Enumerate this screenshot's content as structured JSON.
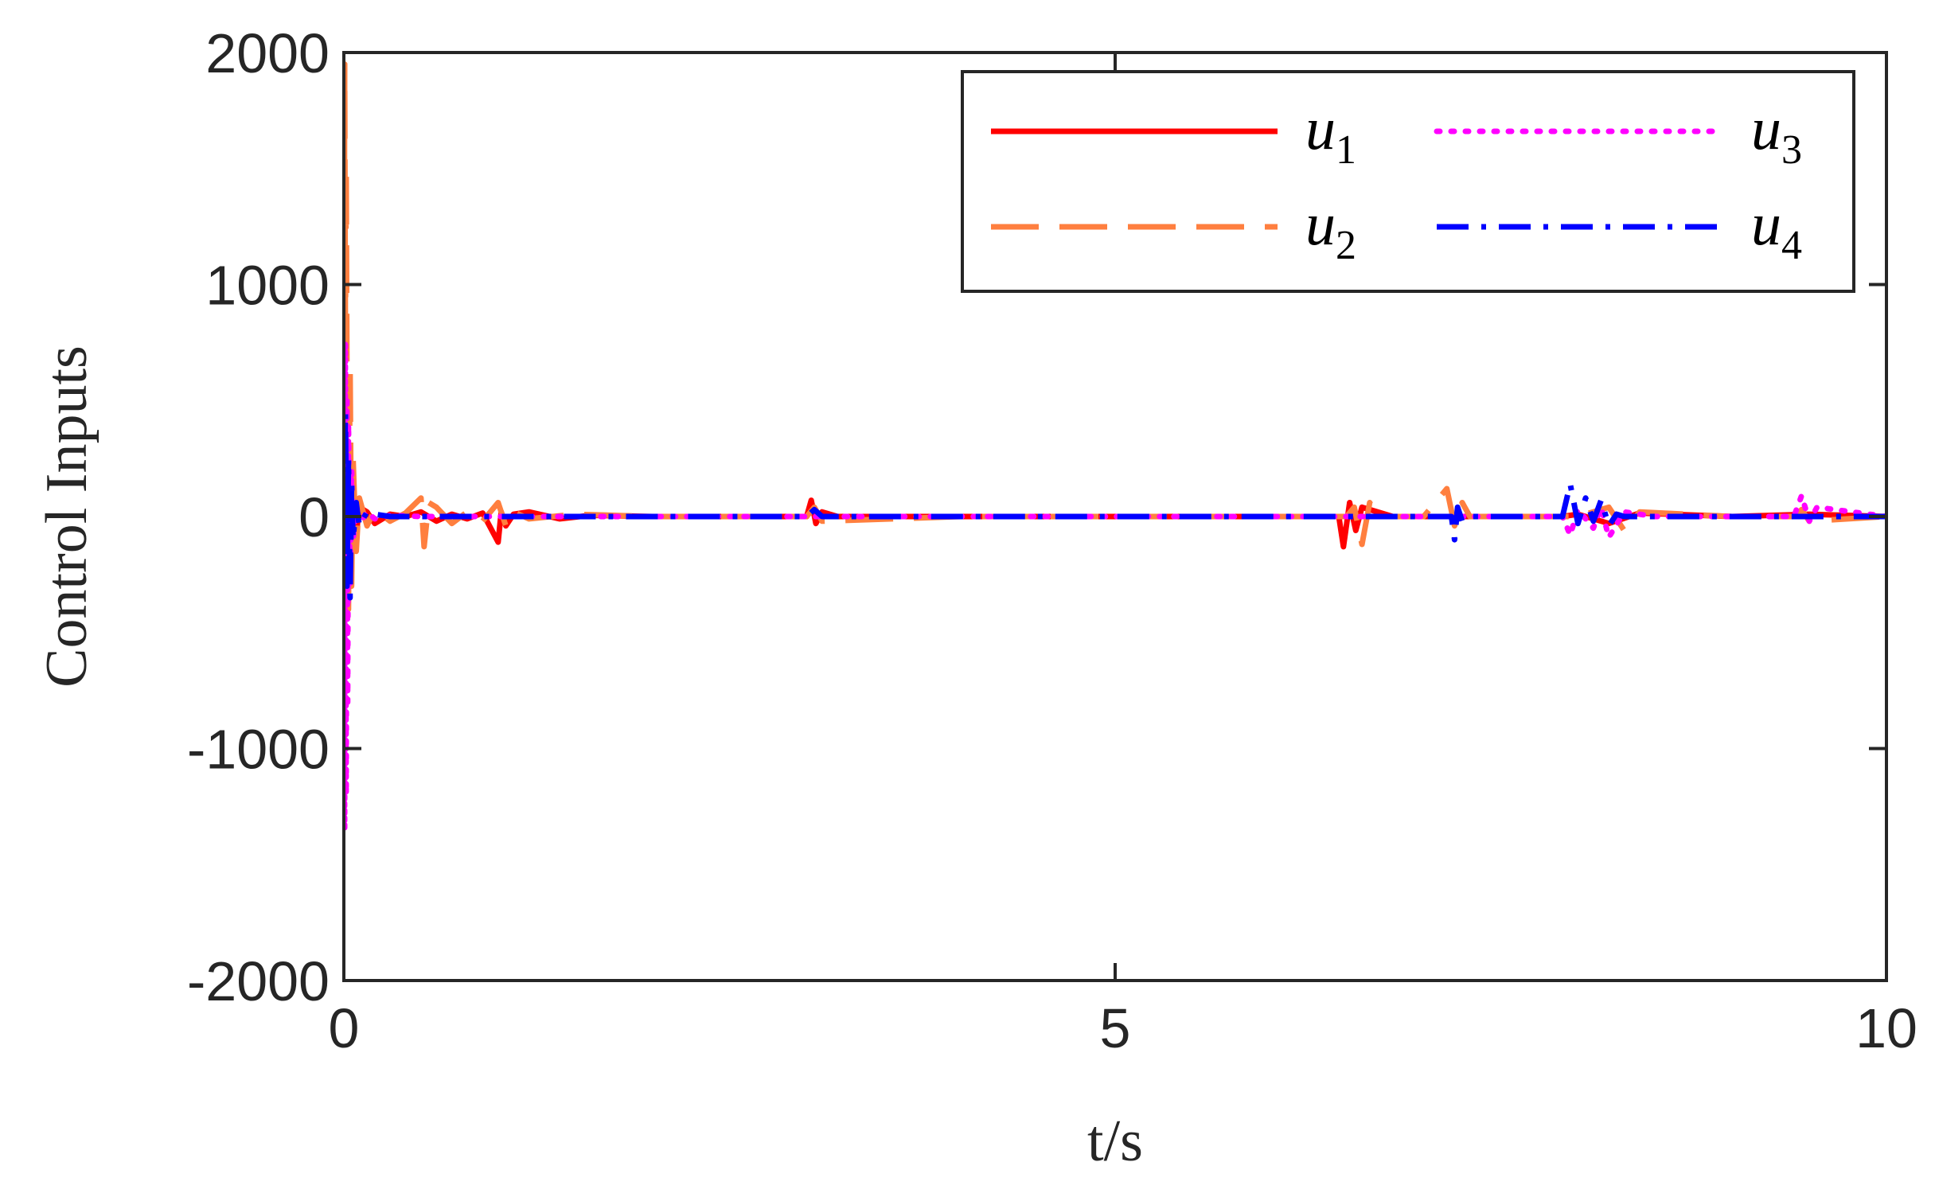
{
  "chart_data": {
    "type": "line",
    "title": "",
    "xlabel": "t/s",
    "ylabel": "Control Inputs",
    "xlim": [
      0,
      10
    ],
    "ylim": [
      -2000,
      2000
    ],
    "xticks": [
      0,
      5,
      10
    ],
    "xtick_labels": [
      "0",
      "5",
      "10"
    ],
    "yticks": [
      -2000,
      -1000,
      0,
      1000,
      2000
    ],
    "ytick_labels": [
      "-2000",
      "-1000",
      "0",
      "1000",
      "2000"
    ],
    "grid": false,
    "legend_position": "top-right",
    "series": [
      {
        "name": "u",
        "subscript": "1",
        "color": "#ff0000",
        "style": "solid",
        "x": [
          0,
          0.02,
          0.04,
          0.06,
          0.08,
          0.1,
          0.15,
          0.2,
          0.3,
          0.4,
          0.5,
          0.6,
          0.7,
          0.8,
          0.9,
          1.0,
          1.02,
          1.05,
          1.1,
          1.2,
          1.4,
          1.6,
          2.0,
          2.5,
          3.0,
          3.03,
          3.06,
          3.1,
          3.2,
          4.0,
          5.0,
          6.0,
          6.45,
          6.48,
          6.52,
          6.56,
          6.6,
          6.8,
          7.0,
          7.2,
          7.5,
          7.9,
          8.0,
          8.2,
          8.4,
          9.0,
          9.5,
          10.0
        ],
        "y": [
          0,
          300,
          -250,
          150,
          -80,
          40,
          20,
          -30,
          10,
          0,
          20,
          -20,
          10,
          -10,
          15,
          -110,
          20,
          -40,
          10,
          20,
          -10,
          5,
          0,
          0,
          0,
          70,
          -30,
          20,
          0,
          0,
          0,
          0,
          0,
          -130,
          60,
          -60,
          40,
          0,
          0,
          0,
          0,
          0,
          10,
          -30,
          15,
          0,
          10,
          0
        ]
      },
      {
        "name": "u",
        "subscript": "2",
        "color": "#ff7f3f",
        "style": "dashed",
        "x": [
          0,
          0.005,
          0.01,
          0.015,
          0.02,
          0.03,
          0.04,
          0.05,
          0.06,
          0.08,
          0.1,
          0.15,
          0.2,
          0.3,
          0.4,
          0.5,
          0.52,
          0.55,
          0.6,
          0.7,
          0.8,
          0.9,
          1.0,
          1.05,
          1.1,
          1.2,
          1.5,
          2.0,
          3.0,
          3.05,
          3.1,
          4.0,
          5.0,
          6.0,
          6.5,
          6.55,
          6.6,
          6.65,
          6.7,
          7.0,
          7.15,
          7.2,
          7.25,
          7.3,
          7.5,
          8.0,
          8.2,
          8.3,
          8.4,
          9.0,
          9.4,
          9.45,
          9.5,
          10.0
        ],
        "y": [
          0,
          1950,
          800,
          1500,
          600,
          -400,
          650,
          -300,
          250,
          -150,
          80,
          -40,
          30,
          -20,
          15,
          80,
          -130,
          60,
          40,
          -30,
          20,
          -20,
          60,
          -40,
          20,
          -10,
          10,
          0,
          0,
          40,
          -20,
          0,
          0,
          0,
          0,
          40,
          -120,
          60,
          0,
          0,
          120,
          -40,
          60,
          0,
          0,
          0,
          40,
          -60,
          20,
          0,
          0,
          30,
          -20,
          0
        ]
      },
      {
        "name": "u",
        "subscript": "3",
        "color": "#ff00ff",
        "style": "dotted",
        "x": [
          0,
          0.005,
          0.01,
          0.015,
          0.02,
          0.025,
          0.03,
          0.04,
          0.05,
          0.06,
          0.08,
          0.1,
          0.15,
          0.2,
          0.3,
          0.5,
          1.0,
          2.0,
          3.0,
          4.0,
          5.0,
          6.0,
          7.0,
          7.5,
          7.9,
          7.95,
          8.0,
          8.1,
          8.15,
          8.2,
          8.3,
          8.5,
          9.0,
          9.4,
          9.45,
          9.5,
          9.55,
          10.0
        ],
        "y": [
          0,
          -1350,
          750,
          -1200,
          500,
          -800,
          400,
          -300,
          200,
          -100,
          50,
          -30,
          20,
          -10,
          5,
          0,
          0,
          0,
          0,
          0,
          0,
          0,
          0,
          0,
          0,
          -80,
          30,
          -50,
          40,
          -90,
          20,
          0,
          0,
          0,
          90,
          -20,
          40,
          0
        ]
      },
      {
        "name": "u",
        "subscript": "4",
        "color": "#0000ff",
        "style": "dashdot",
        "x": [
          0,
          0.01,
          0.02,
          0.03,
          0.04,
          0.05,
          0.06,
          0.08,
          0.1,
          0.15,
          0.2,
          0.3,
          0.5,
          1.0,
          1.5,
          2.0,
          3.0,
          3.05,
          3.1,
          4.0,
          5.0,
          6.0,
          7.0,
          7.18,
          7.2,
          7.22,
          7.25,
          7.3,
          7.5,
          7.9,
          7.95,
          8.0,
          8.05,
          8.1,
          8.15,
          8.2,
          8.25,
          8.3,
          8.5,
          9.0,
          10.0
        ],
        "y": [
          0,
          450,
          -300,
          250,
          -350,
          150,
          -100,
          60,
          -40,
          20,
          10,
          0,
          0,
          0,
          0,
          0,
          0,
          30,
          0,
          0,
          0,
          0,
          0,
          0,
          -100,
          40,
          -20,
          0,
          0,
          0,
          140,
          -30,
          80,
          -20,
          70,
          -40,
          10,
          0,
          0,
          0,
          0
        ]
      }
    ]
  }
}
